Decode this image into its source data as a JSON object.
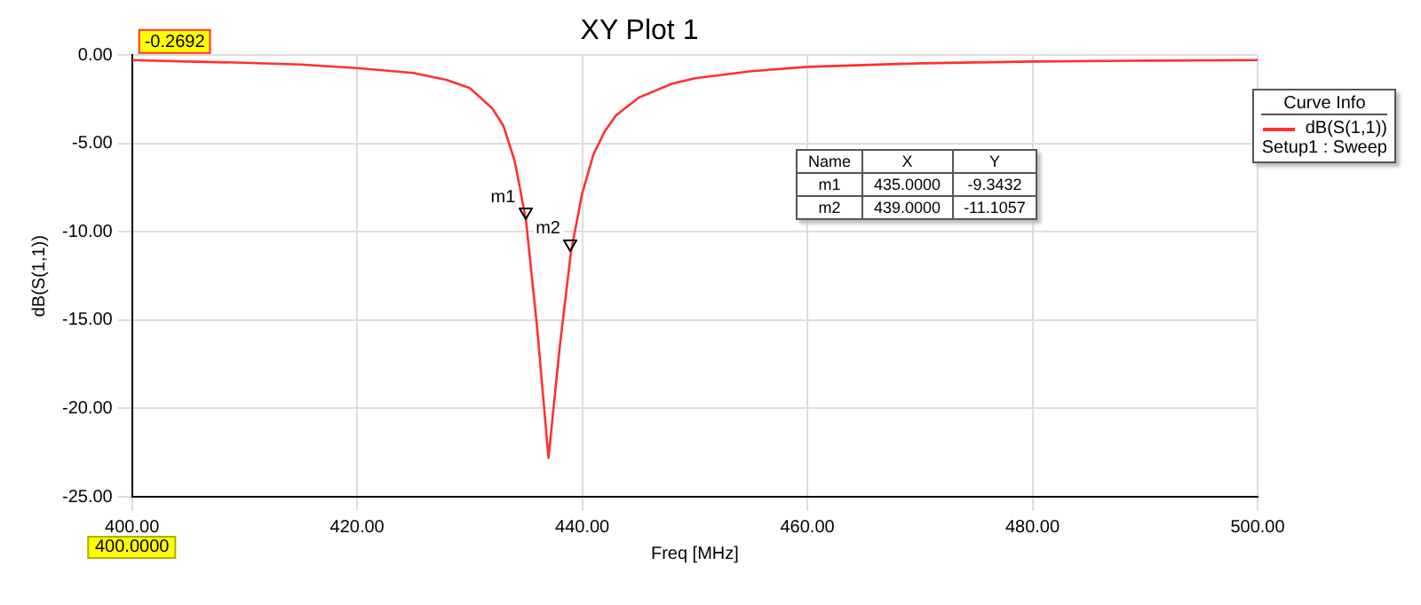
{
  "chart_data": {
    "type": "line",
    "title": "XY Plot 1",
    "xlabel": "Freq [MHz]",
    "ylabel": "dB(S(1,1))",
    "legend_title": "Curve Info",
    "x": [
      400,
      405,
      410,
      415,
      420,
      425,
      428,
      430,
      432,
      433,
      434,
      435,
      436,
      437,
      438,
      439,
      440,
      441,
      442,
      443,
      445,
      448,
      450,
      455,
      460,
      470,
      480,
      490,
      500
    ],
    "series": [
      {
        "name": "dB(S(1,1))",
        "color": "#ff3030",
        "values": [
          -0.2692,
          -0.35,
          -0.42,
          -0.52,
          -0.72,
          -1.0,
          -1.4,
          -1.85,
          -3.0,
          -4.0,
          -6.0,
          -9.3432,
          -15.5,
          -22.8,
          -16.5,
          -11.1057,
          -7.8,
          -5.6,
          -4.3,
          -3.4,
          -2.4,
          -1.6,
          -1.3,
          -0.9,
          -0.65,
          -0.45,
          -0.35,
          -0.3,
          -0.27
        ]
      }
    ],
    "xlim": [
      400,
      500
    ],
    "ylim": [
      -25,
      0
    ],
    "xticks": [
      {
        "value": 400,
        "label": "400.00"
      },
      {
        "value": 420,
        "label": "420.00"
      },
      {
        "value": 440,
        "label": "440.00"
      },
      {
        "value": 460,
        "label": "460.00"
      },
      {
        "value": 480,
        "label": "480.00"
      },
      {
        "value": 500,
        "label": "500.00"
      }
    ],
    "yticks": [
      {
        "value": -25,
        "label": "-25.00"
      },
      {
        "value": -20,
        "label": "-20.00"
      },
      {
        "value": -15,
        "label": "-15.00"
      },
      {
        "value": -10,
        "label": "-10.00"
      },
      {
        "value": -5,
        "label": "-5.00"
      },
      {
        "value": 0,
        "label": "0.00"
      }
    ],
    "grid": true,
    "legend": "top right",
    "marker": "none",
    "line_style": "solid",
    "annotations": [
      {
        "text": "m1",
        "x": 435,
        "y": -9.3432
      },
      {
        "text": "m2",
        "x": 439,
        "y": -11.1057
      },
      {
        "text": "-0.2692",
        "x": 400,
        "y": -0.2692
      },
      "Name",
      "X",
      "Y",
      "m1",
      "435.0000",
      "-9.3432",
      "m2",
      "439.0000",
      "-11.1057",
      "Setup1 : Sweep",
      "400.0000"
    ]
  }
}
